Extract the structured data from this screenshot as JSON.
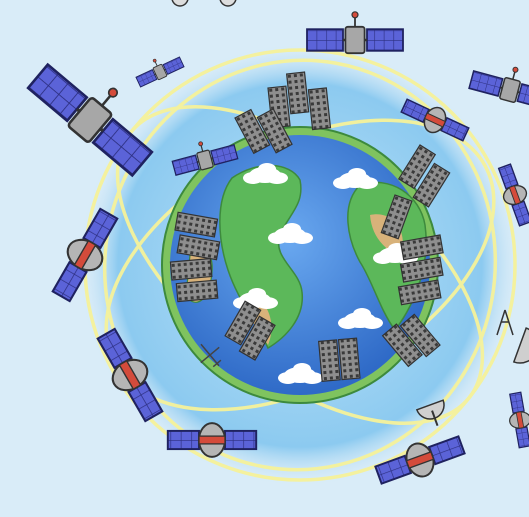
{
  "scene": {
    "colors": {
      "background": "#d9ecf8",
      "glow": "#a9d8f2",
      "ocean": "#4a8fe2",
      "ocean_deep": "#3573cf",
      "land_green": "#5cb85a",
      "land_sand": "#d8b27a",
      "cloud": "#ffffff",
      "orbit": "#f6f29a",
      "panel": "#5b63d8",
      "satellite_body": "#9a9a9a",
      "satellite_red": "#d44b3b",
      "building": "#8e8e8e"
    },
    "icons": {
      "earth": "earth-globe",
      "orbit": "orbit-ring",
      "satellite": "satellite-icon",
      "building": "building-icon",
      "dish": "satellite-dish-icon",
      "antenna": "antenna-icon",
      "cloud": "cloud-icon",
      "airplane": "airplane-icon"
    }
  }
}
